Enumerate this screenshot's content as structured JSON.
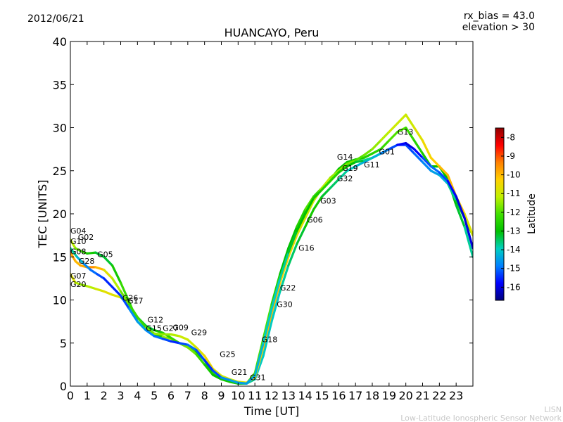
{
  "header": {
    "date": "2012/06/21",
    "rx_bias": "rx_bias = 43.0",
    "elevation": "elevation > 30"
  },
  "footer": {
    "line1": "LISN",
    "line2": "Low-Latitude Ionospheric Sensor Network"
  },
  "chart_data": {
    "type": "line",
    "title": "HUANCAYO, Peru",
    "xlabel": "Time [UT]",
    "ylabel": "TEC [UNITS]",
    "xlim": [
      0,
      24
    ],
    "ylim": [
      0,
      40
    ],
    "x_ticks": [
      "0",
      "1",
      "2",
      "3",
      "4",
      "5",
      "6",
      "7",
      "8",
      "9",
      "10",
      "11",
      "12",
      "13",
      "14",
      "15",
      "16",
      "17",
      "18",
      "19",
      "20",
      "21",
      "22",
      "23"
    ],
    "y_ticks": [
      "0",
      "5",
      "10",
      "15",
      "20",
      "25",
      "30",
      "35",
      "40"
    ],
    "colorbar": {
      "label": "Latitude",
      "range": [
        -16.7,
        -7.5
      ],
      "ticks": [
        "-8",
        "-9",
        "-10",
        "-11",
        "-12",
        "-13",
        "-14",
        "-15",
        "-16"
      ],
      "colormap": [
        "#00007f",
        "#0000ff",
        "#0080ff",
        "#00d0c0",
        "#00c000",
        "#40e000",
        "#c0f000",
        "#ffd000",
        "#ff8000",
        "#ff0000",
        "#900000"
      ]
    },
    "satellite_labels": [
      {
        "label": "G04",
        "x": 0.0,
        "y": 17.7
      },
      {
        "label": "G02",
        "x": 0.45,
        "y": 17.0
      },
      {
        "label": "G10",
        "x": 0.0,
        "y": 16.5
      },
      {
        "label": "G08",
        "x": 0.0,
        "y": 15.3
      },
      {
        "label": "G05",
        "x": 1.6,
        "y": 15.0
      },
      {
        "label": "G28",
        "x": 0.5,
        "y": 14.2
      },
      {
        "label": "G07",
        "x": 0.0,
        "y": 12.5
      },
      {
        "label": "G20",
        "x": 0.0,
        "y": 11.5
      },
      {
        "label": "G26",
        "x": 3.1,
        "y": 9.9
      },
      {
        "label": "G17",
        "x": 3.4,
        "y": 9.6
      },
      {
        "label": "G12",
        "x": 4.6,
        "y": 7.4
      },
      {
        "label": "G15",
        "x": 4.5,
        "y": 6.4
      },
      {
        "label": "G27",
        "x": 5.5,
        "y": 6.4
      },
      {
        "label": "G09",
        "x": 6.1,
        "y": 6.5
      },
      {
        "label": "G29",
        "x": 7.2,
        "y": 5.9
      },
      {
        "label": "G25",
        "x": 8.9,
        "y": 3.4
      },
      {
        "label": "G21",
        "x": 9.6,
        "y": 1.3
      },
      {
        "label": "G31",
        "x": 10.7,
        "y": 0.7
      },
      {
        "label": "G18",
        "x": 11.4,
        "y": 5.1
      },
      {
        "label": "G22",
        "x": 12.5,
        "y": 11.1
      },
      {
        "label": "G30",
        "x": 12.3,
        "y": 9.2
      },
      {
        "label": "G16",
        "x": 13.6,
        "y": 15.7
      },
      {
        "label": "G06",
        "x": 14.1,
        "y": 19.0
      },
      {
        "label": "G03",
        "x": 14.9,
        "y": 21.2
      },
      {
        "label": "G32",
        "x": 15.9,
        "y": 23.8
      },
      {
        "label": "G14",
        "x": 15.9,
        "y": 26.3
      },
      {
        "label": "G19",
        "x": 16.2,
        "y": 25.0
      },
      {
        "label": "G11",
        "x": 17.5,
        "y": 25.4
      },
      {
        "label": "G01",
        "x": 18.4,
        "y": 26.9
      },
      {
        "label": "G13",
        "x": 19.5,
        "y": 29.2
      }
    ],
    "series": [
      {
        "x": [
          0,
          0.3,
          0.6,
          1,
          1.5,
          2,
          2.5,
          3,
          3.5,
          4,
          4.5,
          5,
          5.5,
          6,
          6.5,
          7,
          7.5,
          8,
          8.5,
          9,
          9.5,
          10,
          10.5,
          11,
          11.5,
          12,
          12.5,
          13,
          13.5,
          14,
          14.5,
          15,
          15.5,
          16,
          16.5,
          17,
          17.5,
          18,
          18.5,
          19,
          19.5,
          20,
          20.5,
          21,
          21.5,
          22,
          22.5,
          23,
          23.5,
          24
        ],
        "y": [
          17,
          16,
          15.7,
          15.4,
          15.5,
          15,
          14,
          12,
          9.8,
          7.5,
          6.5,
          6,
          5.7,
          5.5,
          5,
          4.5,
          4,
          3,
          1.5,
          1,
          0.6,
          0.3,
          0.3,
          1.5,
          5.5,
          9.5,
          13,
          16,
          18.5,
          20.5,
          22,
          23,
          24,
          25.2,
          26,
          26.3,
          26.5,
          27,
          27.5,
          28.5,
          29.5,
          30,
          28.5,
          27,
          25.5,
          25.5,
          24,
          21,
          18.5,
          15
        ],
        "lat": [
          -11,
          -11.5,
          -12,
          -12.5,
          -13,
          -13.5,
          -13,
          -12.5,
          -12,
          -13,
          -14,
          -13.5,
          -12,
          -11,
          -11.5,
          -12,
          -13,
          -13,
          -12.5,
          -12,
          -13,
          -13,
          -12,
          -12,
          -12,
          -12,
          -13,
          -13,
          -13,
          -12,
          -12,
          -12.5,
          -12.5,
          -13,
          -13,
          -13,
          -12.5,
          -12.5,
          -12.5,
          -12,
          -12,
          -12,
          -12.5,
          -12.5,
          -13,
          -13,
          -13,
          -13,
          -13.5,
          -14
        ]
      },
      {
        "x": [
          0,
          0.3,
          0.6,
          1,
          1.5,
          2,
          2.5,
          3,
          3.5,
          4,
          4.5,
          5,
          5.5,
          6,
          6.5,
          7,
          7.5,
          8,
          8.5,
          9,
          9.5,
          10,
          10.5,
          11,
          11.5,
          12,
          12.5,
          13,
          13.5,
          14,
          14.5,
          15,
          15.5,
          16,
          16.5,
          17,
          17.5,
          18,
          18.5,
          19,
          19.5,
          20,
          20.5,
          21,
          21.5,
          22,
          22.5,
          23,
          23.5,
          24
        ],
        "y": [
          13,
          12,
          11.8,
          11.6,
          11.3,
          11,
          10.6,
          10.3,
          9.5,
          8,
          7,
          6.5,
          6.2,
          5.6,
          5,
          4.5,
          3.7,
          2.5,
          1.3,
          0.8,
          0.5,
          0.3,
          0.3,
          0.8,
          3.5,
          7.5,
          11,
          14,
          16.5,
          18.5,
          20.5,
          22,
          23,
          24,
          25,
          25.5,
          26,
          26.5,
          27,
          27.5,
          28,
          28,
          27,
          26,
          25,
          24.5,
          23.5,
          21.5,
          19.5,
          17.5
        ],
        "lat": [
          -10.5,
          -11,
          -11.5,
          -11.5,
          -11,
          -10.8,
          -10.5,
          -11,
          -12,
          -13,
          -13.5,
          -13,
          -12.5,
          -12.5,
          -12,
          -11.5,
          -12,
          -12.5,
          -13,
          -13,
          -12.5,
          -13,
          -13.5,
          -14,
          -14,
          -14,
          -14,
          -13.5,
          -13.5,
          -13,
          -12.5,
          -13,
          -13.5,
          -13.5,
          -14,
          -14,
          -14.5,
          -14.5,
          -15,
          -15,
          -15.5,
          -15.5,
          -15,
          -15,
          -14.5,
          -14.5,
          -14,
          -13.5,
          -13,
          -12.5
        ]
      },
      {
        "x": [
          0,
          0.3,
          0.6,
          1,
          1.5,
          2,
          2.5,
          3,
          3.5,
          4,
          4.5,
          5,
          5.5,
          6,
          6.5,
          7,
          7.5,
          8,
          8.5,
          9,
          9.5,
          10,
          10.5,
          11,
          11.5,
          12,
          12.5,
          13,
          13.5,
          14,
          14.5,
          15,
          15.5,
          16,
          16.5,
          17,
          17.5,
          18,
          18.5,
          19,
          19.5,
          20,
          20.5,
          21,
          21.5,
          22,
          22.5,
          23,
          23.5,
          24
        ],
        "y": [
          15.5,
          14.5,
          14,
          13.8,
          13.8,
          13.5,
          12.5,
          11,
          9.5,
          8,
          6.8,
          6.1,
          6,
          6,
          5.8,
          5.4,
          4.5,
          3.5,
          2,
          1.2,
          0.8,
          0.5,
          0.4,
          1,
          4.5,
          8.5,
          12,
          15,
          17.5,
          19.5,
          21.5,
          23,
          24.2,
          25,
          25.8,
          26.2,
          26.8,
          27.5,
          28.5,
          29.5,
          30.5,
          31.5,
          30,
          28.5,
          26.5,
          25.5,
          24.5,
          22,
          20,
          17.5
        ],
        "lat": [
          -9.5,
          -10,
          -10,
          -9.5,
          -9.5,
          -10.5,
          -11,
          -11.5,
          -12,
          -12.5,
          -12,
          -11.5,
          -11.5,
          -11.5,
          -11,
          -11,
          -11,
          -10.5,
          -10.5,
          -11,
          -11,
          -11,
          -10.5,
          -10.5,
          -10,
          -10,
          -10,
          -10.5,
          -10.5,
          -11,
          -11,
          -11,
          -11.5,
          -11.5,
          -11.5,
          -12,
          -12,
          -11.5,
          -11.5,
          -11,
          -11,
          -11,
          -11,
          -10.5,
          -10.5,
          -10,
          -10,
          -10,
          -10.5,
          -11
        ]
      },
      {
        "x": [
          0,
          0.4,
          0.8,
          1.2,
          1.6,
          2,
          2.5,
          3,
          3.5,
          4,
          4.5,
          5,
          5.5,
          6,
          6.5,
          7,
          7.5,
          8,
          8.5,
          9,
          9.5,
          10,
          10.5,
          11,
          11.5,
          12,
          12.5,
          13,
          13.5,
          14,
          14.5,
          15,
          15.5,
          16,
          16.5,
          17,
          17.5,
          18,
          18.5,
          19,
          19.5,
          20,
          20.5,
          21,
          21.5,
          22,
          22.5,
          23,
          23.5,
          24
        ],
        "y": [
          16,
          15,
          14.2,
          13.5,
          13,
          12.5,
          11.5,
          10.5,
          9,
          7.5,
          6.5,
          5.8,
          5.5,
          5.2,
          5,
          4.8,
          4.2,
          3,
          1.8,
          1,
          0.7,
          0.4,
          0.3,
          1.2,
          5,
          9,
          12.5,
          15.5,
          18,
          20,
          21.8,
          22.8,
          23.8,
          24.8,
          25.5,
          26,
          26.2,
          26.5,
          27,
          27.5,
          28,
          28.2,
          27.5,
          26.5,
          25.5,
          24.8,
          23.8,
          22,
          19.5,
          16
        ],
        "lat": [
          -13.5,
          -14,
          -14.5,
          -15,
          -15,
          -15.5,
          -15.5,
          -15.5,
          -15,
          -14.5,
          -14.5,
          -15,
          -15,
          -15.5,
          -15.5,
          -15,
          -15,
          -15.5,
          -15.5,
          -15,
          -14.5,
          -14.5,
          -14.5,
          -14.5,
          -14,
          -14,
          -14,
          -13.5,
          -13,
          -13,
          -13,
          -12.5,
          -12.5,
          -12.5,
          -13,
          -13,
          -13.5,
          -14,
          -14.5,
          -15,
          -15.5,
          -16,
          -16,
          -15.5,
          -15,
          -15,
          -15.5,
          -16,
          -16,
          -16
        ]
      }
    ]
  }
}
